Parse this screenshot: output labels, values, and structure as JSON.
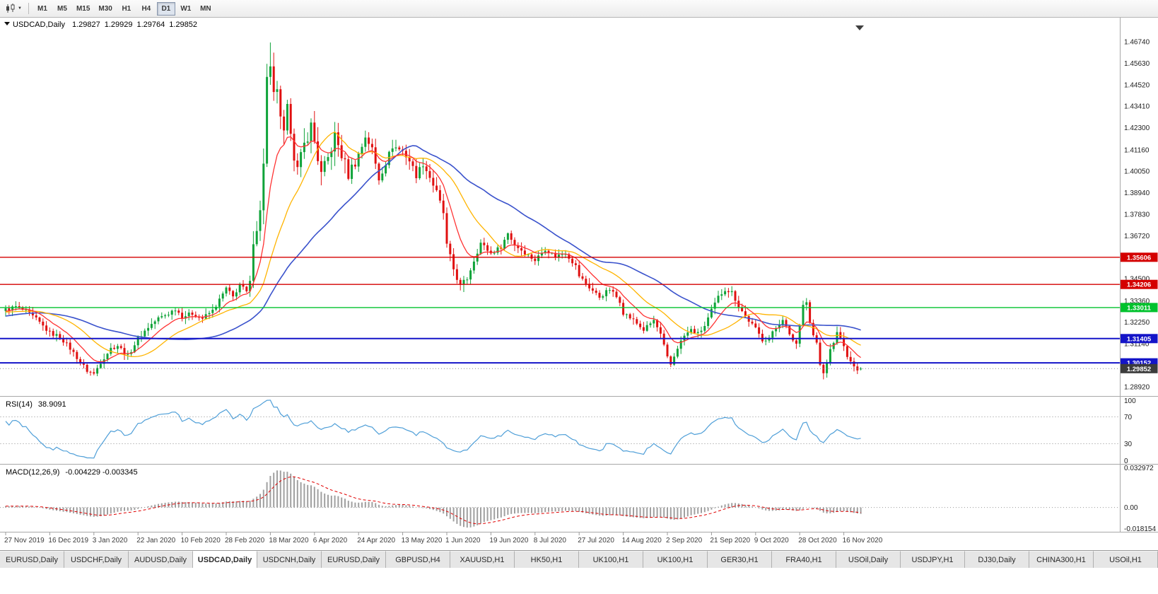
{
  "toolbar": {
    "timeframes": [
      {
        "label": "M1",
        "active": false
      },
      {
        "label": "M5",
        "active": false
      },
      {
        "label": "M15",
        "active": false
      },
      {
        "label": "M30",
        "active": false
      },
      {
        "label": "H1",
        "active": false
      },
      {
        "label": "H4",
        "active": false
      },
      {
        "label": "D1",
        "active": true
      },
      {
        "label": "W1",
        "active": false
      },
      {
        "label": "MN",
        "active": false
      }
    ]
  },
  "chart": {
    "header": {
      "symbol": "USDCAD,Daily",
      "open": "1.29827",
      "high": "1.29929",
      "low": "1.29764",
      "close": "1.29852"
    },
    "price_ticks": [
      "1.46740",
      "1.45630",
      "1.44520",
      "1.43410",
      "1.42300",
      "1.41160",
      "1.40050",
      "1.38940",
      "1.37830",
      "1.36720",
      "1.35610",
      "1.34500",
      "1.33360",
      "1.32250",
      "1.31140",
      "1.30030",
      "1.28920"
    ],
    "levels": [
      {
        "value": "1.35606",
        "color": "#d40000",
        "width": 1.4
      },
      {
        "value": "1.34206",
        "color": "#d40000",
        "width": 1.4
      },
      {
        "value": "1.33011",
        "color": "#00c22d",
        "width": 1.4
      },
      {
        "value": "1.31405",
        "color": "#1414c8",
        "width": 2
      },
      {
        "value": "1.30152",
        "color": "#1414c8",
        "width": 2
      }
    ],
    "last_price": {
      "value": "1.29852",
      "badge_color": "#3c3c3c"
    }
  },
  "rsi": {
    "label": "RSI(14)",
    "value": "38.9091",
    "line_color": "#4f9fd8",
    "ticks": [
      {
        "label": "100",
        "v": 100
      },
      {
        "label": "70",
        "v": 70
      },
      {
        "label": "30",
        "v": 30
      },
      {
        "label": "0",
        "v": 0
      }
    ]
  },
  "macd": {
    "label": "MACD(12,26,9)",
    "value": "-0.004229 -0.003345",
    "hist_color": "#a0a0a0",
    "signal_color": "#e00000",
    "ticks": [
      {
        "label": "0.032972",
        "v": 0.032972
      },
      {
        "label": "0.00",
        "v": 0
      },
      {
        "label": "-0.018154",
        "v": -0.018154
      }
    ]
  },
  "tabs": [
    {
      "label": "EURUSD,Daily",
      "active": false
    },
    {
      "label": "USDCHF,Daily",
      "active": false
    },
    {
      "label": "AUDUSD,Daily",
      "active": false
    },
    {
      "label": "USDCAD,Daily",
      "active": true
    },
    {
      "label": "USDCNH,Daily",
      "active": false
    },
    {
      "label": "EURUSD,Daily",
      "active": false
    },
    {
      "label": "GBPUSD,H4",
      "active": false
    },
    {
      "label": "XAUUSD,H1",
      "active": false
    },
    {
      "label": "HK50,H1",
      "active": false
    },
    {
      "label": "UK100,H1",
      "active": false
    },
    {
      "label": "UK100,H1",
      "active": false
    },
    {
      "label": "GER30,H1",
      "active": false
    },
    {
      "label": "FRA40,H1",
      "active": false
    },
    {
      "label": "USOil,Daily",
      "active": false
    },
    {
      "label": "USDJPY,H1",
      "active": false
    },
    {
      "label": "DJ30,Daily",
      "active": false
    },
    {
      "label": "CHINA300,H1",
      "active": false
    },
    {
      "label": "USOil,H1",
      "active": false
    }
  ],
  "chart_data": {
    "type": "candlestick",
    "symbol": "USDCAD",
    "timeframe": "Daily",
    "num_bars": 253,
    "bars_per_label": 13,
    "date_labels": [
      "27 Nov 2019",
      "16 Dec 2019",
      "3 Jan 2020",
      "22 Jan 2020",
      "10 Feb 2020",
      "28 Feb 2020",
      "18 Mar 2020",
      "6 Apr 2020",
      "24 Apr 2020",
      "13 May 2020",
      "1 Jun 2020",
      "19 Jun 2020",
      "8 Jul 2020",
      "27 Jul 2020",
      "14 Aug 2020",
      "2 Sep 2020",
      "21 Sep 2020",
      "9 Oct 2020",
      "28 Oct 2020",
      "16 Nov 2020"
    ],
    "price_axis": {
      "top": 1.4802,
      "bottom": 1.2844
    },
    "up_color": "#0fa339",
    "down_color": "#e01010",
    "levels": [
      1.35606,
      1.34206,
      1.33011,
      1.31405,
      1.30152
    ],
    "last_price": 1.29852,
    "last_candle": {
      "open": 1.29827,
      "high": 1.29929,
      "low": 1.29764,
      "close": 1.29852
    },
    "pad_anchors": [
      [
        -50,
        1.3155
      ],
      [
        -40,
        1.3205
      ],
      [
        -30,
        1.3255
      ],
      [
        -20,
        1.329
      ],
      [
        -10,
        1.3265
      ],
      [
        -1,
        1.3288
      ]
    ],
    "anchors": [
      [
        0,
        1.329
      ],
      [
        3,
        1.3305
      ],
      [
        6,
        1.328
      ],
      [
        9,
        1.324
      ],
      [
        13,
        1.317
      ],
      [
        16,
        1.315
      ],
      [
        19,
        1.309
      ],
      [
        22,
        1.302
      ],
      [
        24,
        1.2975
      ],
      [
        26,
        1.2958
      ],
      [
        28,
        1.302
      ],
      [
        31,
        1.309
      ],
      [
        33,
        1.3105
      ],
      [
        36,
        1.305
      ],
      [
        39,
        1.314
      ],
      [
        42,
        1.32
      ],
      [
        45,
        1.3245
      ],
      [
        48,
        1.327
      ],
      [
        50,
        1.3295
      ],
      [
        52,
        1.3255
      ],
      [
        55,
        1.327
      ],
      [
        58,
        1.3245
      ],
      [
        61,
        1.3285
      ],
      [
        63,
        1.334
      ],
      [
        65,
        1.34
      ],
      [
        67,
        1.3355
      ],
      [
        69,
        1.342
      ],
      [
        71,
        1.338
      ],
      [
        72,
        1.343
      ],
      [
        73,
        1.366
      ],
      [
        74,
        1.372
      ],
      [
        75,
        1.379
      ],
      [
        76,
        1.406
      ],
      [
        77,
        1.448
      ],
      [
        78,
        1.452
      ],
      [
        79,
        1.439
      ],
      [
        80,
        1.444
      ],
      [
        81,
        1.426
      ],
      [
        82,
        1.419
      ],
      [
        83,
        1.432
      ],
      [
        84,
        1.423
      ],
      [
        85,
        1.409
      ],
      [
        86,
        1.401
      ],
      [
        88,
        1.414
      ],
      [
        90,
        1.424
      ],
      [
        91,
        1.416
      ],
      [
        93,
        1.3985
      ],
      [
        95,
        1.407
      ],
      [
        97,
        1.4185
      ],
      [
        99,
        1.409
      ],
      [
        101,
        1.399
      ],
      [
        104,
        1.409
      ],
      [
        106,
        1.4185
      ],
      [
        108,
        1.412
      ],
      [
        110,
        1.3965
      ],
      [
        112,
        1.405
      ],
      [
        114,
        1.4135
      ],
      [
        117,
        1.411
      ],
      [
        119,
        1.406
      ],
      [
        121,
        1.3985
      ],
      [
        123,
        1.4045
      ],
      [
        125,
        1.3975
      ],
      [
        127,
        1.3895
      ],
      [
        129,
        1.379
      ],
      [
        130,
        1.362
      ],
      [
        132,
        1.35
      ],
      [
        134,
        1.341
      ],
      [
        136,
        1.345
      ],
      [
        138,
        1.3545
      ],
      [
        140,
        1.3635
      ],
      [
        143,
        1.358
      ],
      [
        146,
        1.3615
      ],
      [
        148,
        1.3685
      ],
      [
        150,
        1.3625
      ],
      [
        153,
        1.3585
      ],
      [
        156,
        1.3545
      ],
      [
        159,
        1.3605
      ],
      [
        162,
        1.3565
      ],
      [
        165,
        1.3585
      ],
      [
        168,
        1.3515
      ],
      [
        169,
        1.3465
      ],
      [
        172,
        1.3405
      ],
      [
        175,
        1.3355
      ],
      [
        178,
        1.3395
      ],
      [
        181,
        1.3335
      ],
      [
        182,
        1.3275
      ],
      [
        185,
        1.3235
      ],
      [
        188,
        1.3185
      ],
      [
        191,
        1.3235
      ],
      [
        193,
        1.316
      ],
      [
        195,
        1.304
      ],
      [
        196,
        1.3005
      ],
      [
        198,
        1.3095
      ],
      [
        200,
        1.3155
      ],
      [
        202,
        1.3185
      ],
      [
        204,
        1.3165
      ],
      [
        206,
        1.3205
      ],
      [
        208,
        1.3285
      ],
      [
        210,
        1.3355
      ],
      [
        212,
        1.3395
      ],
      [
        214,
        1.338
      ],
      [
        216,
        1.331
      ],
      [
        218,
        1.3255
      ],
      [
        221,
        1.319
      ],
      [
        223,
        1.3135
      ],
      [
        225,
        1.3145
      ],
      [
        227,
        1.3195
      ],
      [
        229,
        1.3245
      ],
      [
        231,
        1.3155
      ],
      [
        233,
        1.3115
      ],
      [
        234,
        1.321
      ],
      [
        235,
        1.3325
      ],
      [
        236,
        1.333
      ],
      [
        237,
        1.3225
      ],
      [
        238,
        1.3155
      ],
      [
        239,
        1.312
      ],
      [
        240,
        1.3
      ],
      [
        241,
        1.296
      ],
      [
        242,
        1.3015
      ],
      [
        243,
        1.3085
      ],
      [
        244,
        1.3125
      ],
      [
        245,
        1.3165
      ],
      [
        246,
        1.315
      ],
      [
        247,
        1.3095
      ],
      [
        248,
        1.3055
      ],
      [
        249,
        1.3015
      ],
      [
        250,
        1.2992
      ],
      [
        251,
        1.2978
      ],
      [
        252,
        1.29852
      ]
    ],
    "wick_overrides": [
      {
        "day": 78,
        "high": 1.467
      },
      {
        "day": 77,
        "high": 1.456
      },
      {
        "day": 26,
        "low": 1.2951
      },
      {
        "day": 241,
        "low": 1.293
      }
    ],
    "indicators": {
      "ma_fast": {
        "type": "ema",
        "period": 10,
        "color": "#ff3333"
      },
      "ma_mid": {
        "type": "sma",
        "period": 21,
        "color": "#ffb400"
      },
      "ma_slow": {
        "type": "sma",
        "period": 45,
        "color": "#3a52cc"
      },
      "rsi": {
        "period": 14,
        "last": 38.9091
      },
      "macd": {
        "fast": 12,
        "slow": 26,
        "signal": 9,
        "last": -0.004229,
        "signal_last": -0.003345
      }
    }
  }
}
